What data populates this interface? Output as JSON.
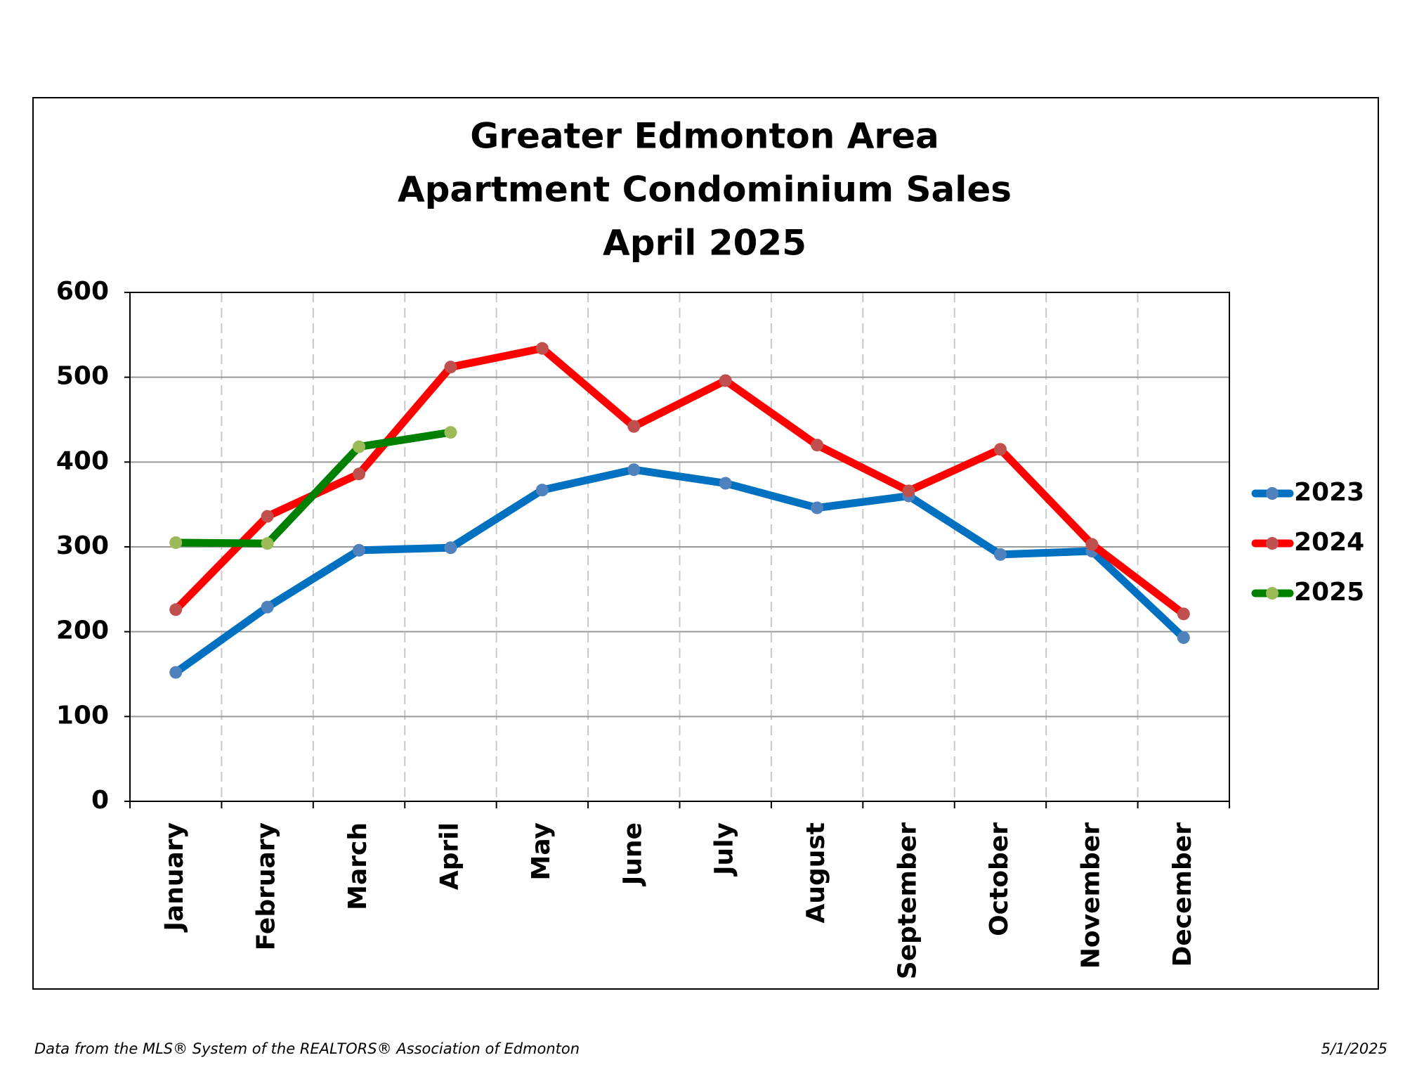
{
  "chart_data": {
    "type": "line",
    "title": [
      "Greater Edmonton Area",
      "Apartment Condominium Sales",
      "April 2025"
    ],
    "categories": [
      "January",
      "February",
      "March",
      "April",
      "May",
      "June",
      "July",
      "August",
      "September",
      "October",
      "November",
      "December"
    ],
    "series": [
      {
        "name": "2023",
        "color": "#0070c0",
        "marker_color": "#4f81bd",
        "values": [
          152,
          229,
          296,
          299,
          367,
          391,
          375,
          346,
          360,
          291,
          295,
          193
        ]
      },
      {
        "name": "2024",
        "color": "#ff0000",
        "marker_color": "#c0504d",
        "values": [
          226,
          336,
          386,
          512,
          534,
          442,
          496,
          420,
          366,
          415,
          303,
          221
        ]
      },
      {
        "name": "2025",
        "color": "#008000",
        "marker_color": "#9bbb59",
        "values": [
          305,
          304,
          418,
          435,
          null,
          null,
          null,
          null,
          null,
          null,
          null,
          null
        ]
      }
    ],
    "ylim": [
      0,
      600
    ],
    "yticks": [
      0,
      100,
      200,
      300,
      400,
      500,
      600
    ],
    "grid": true,
    "legend": "right"
  },
  "footer": {
    "source": "Data from the MLS® System of the REALTORS® Association of Edmonton",
    "date": "5/1/2025"
  }
}
